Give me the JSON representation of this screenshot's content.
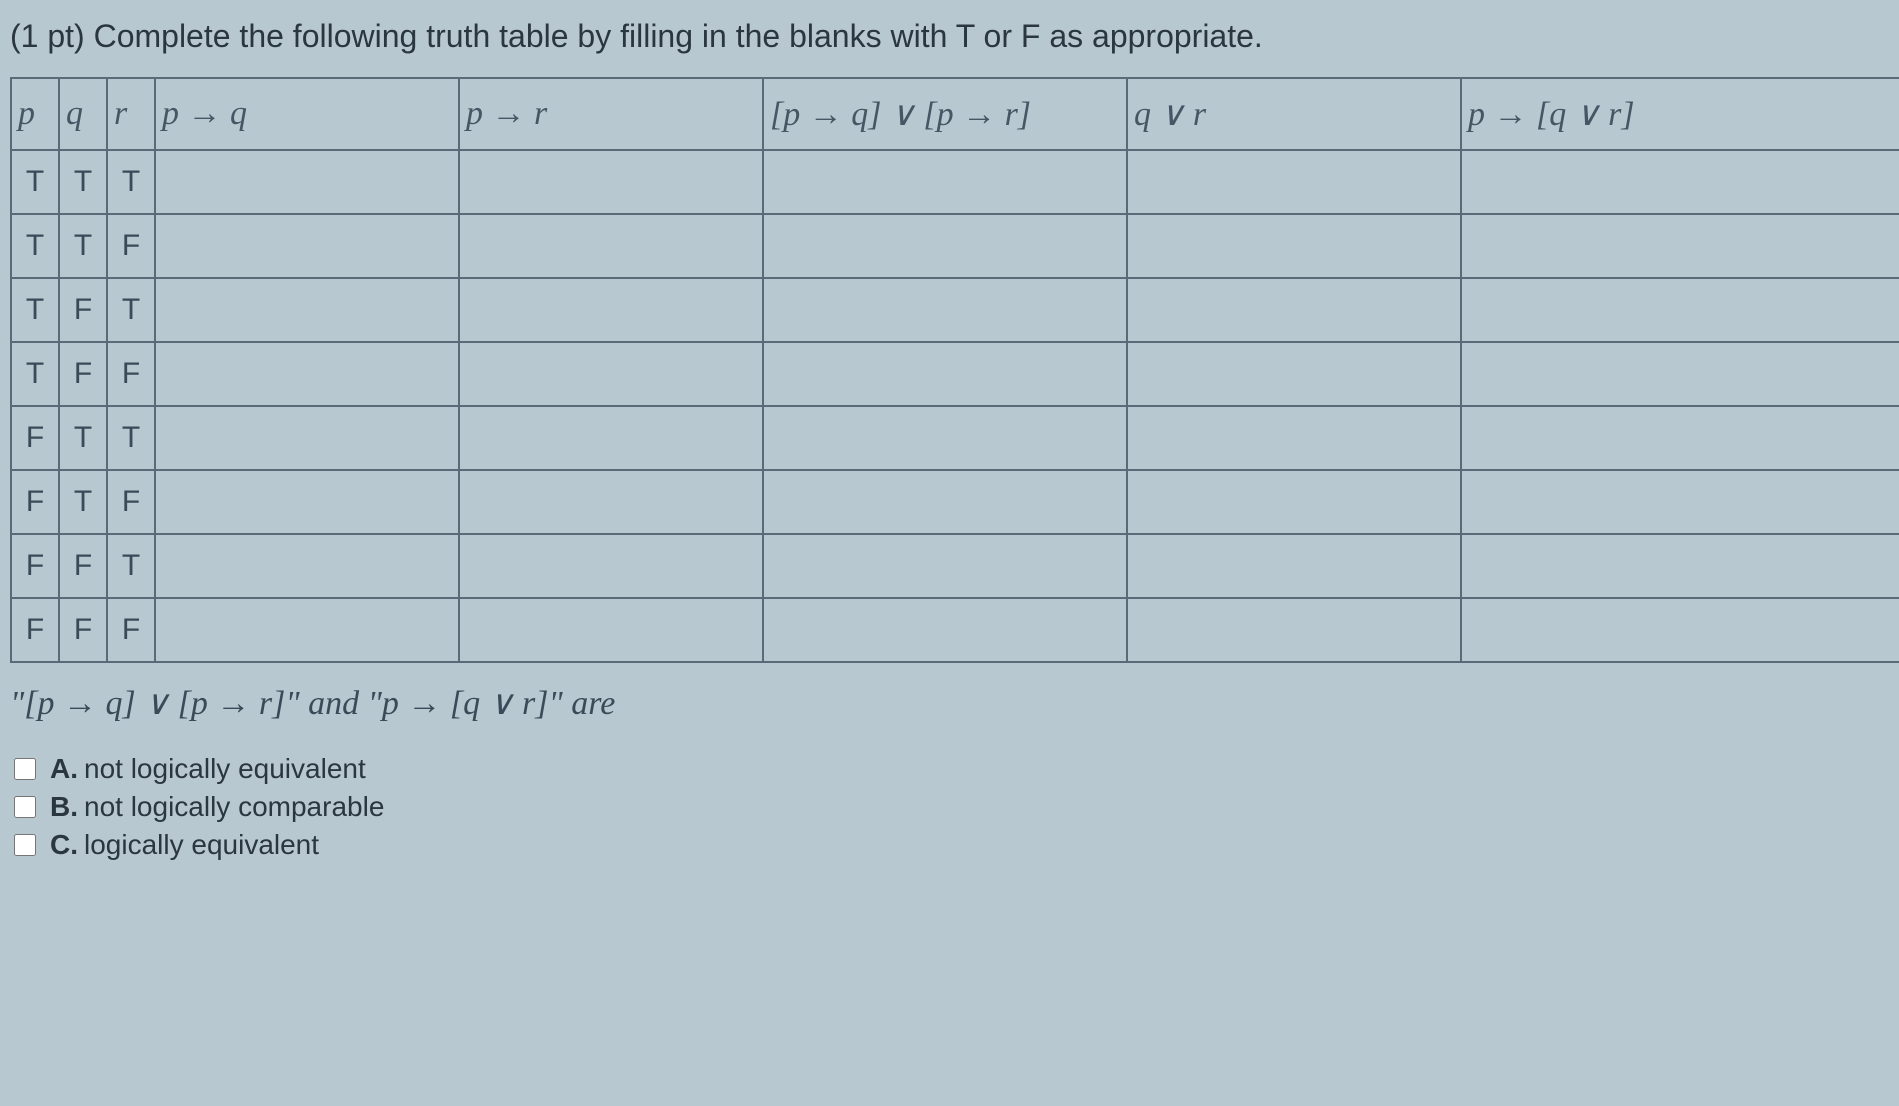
{
  "prompt": "(1 pt) Complete the following truth table by filling in the blanks with T or F as appropriate.",
  "headers": {
    "p": "p",
    "q": "q",
    "r": "r",
    "pq": "p → q",
    "pr": "p → r",
    "disj": "[p → q] ∨ [p → r]",
    "qvr": "q ∨ r",
    "cond": "p → [q ∨ r]"
  },
  "rows": [
    {
      "p": "T",
      "q": "T",
      "r": "T"
    },
    {
      "p": "T",
      "q": "T",
      "r": "F"
    },
    {
      "p": "T",
      "q": "F",
      "r": "T"
    },
    {
      "p": "T",
      "q": "F",
      "r": "F"
    },
    {
      "p": "F",
      "q": "T",
      "r": "T"
    },
    {
      "p": "F",
      "q": "T",
      "r": "F"
    },
    {
      "p": "F",
      "q": "F",
      "r": "T"
    },
    {
      "p": "F",
      "q": "F",
      "r": "F"
    }
  ],
  "statement": "\"[p → q] ∨ [p → r]\" and \"p → [q ∨ r]\" are",
  "options": {
    "a": {
      "letter": "A.",
      "text": "not logically equivalent"
    },
    "b": {
      "letter": "B.",
      "text": "not logically comparable"
    },
    "c": {
      "letter": "C.",
      "text": "logically equivalent"
    }
  }
}
